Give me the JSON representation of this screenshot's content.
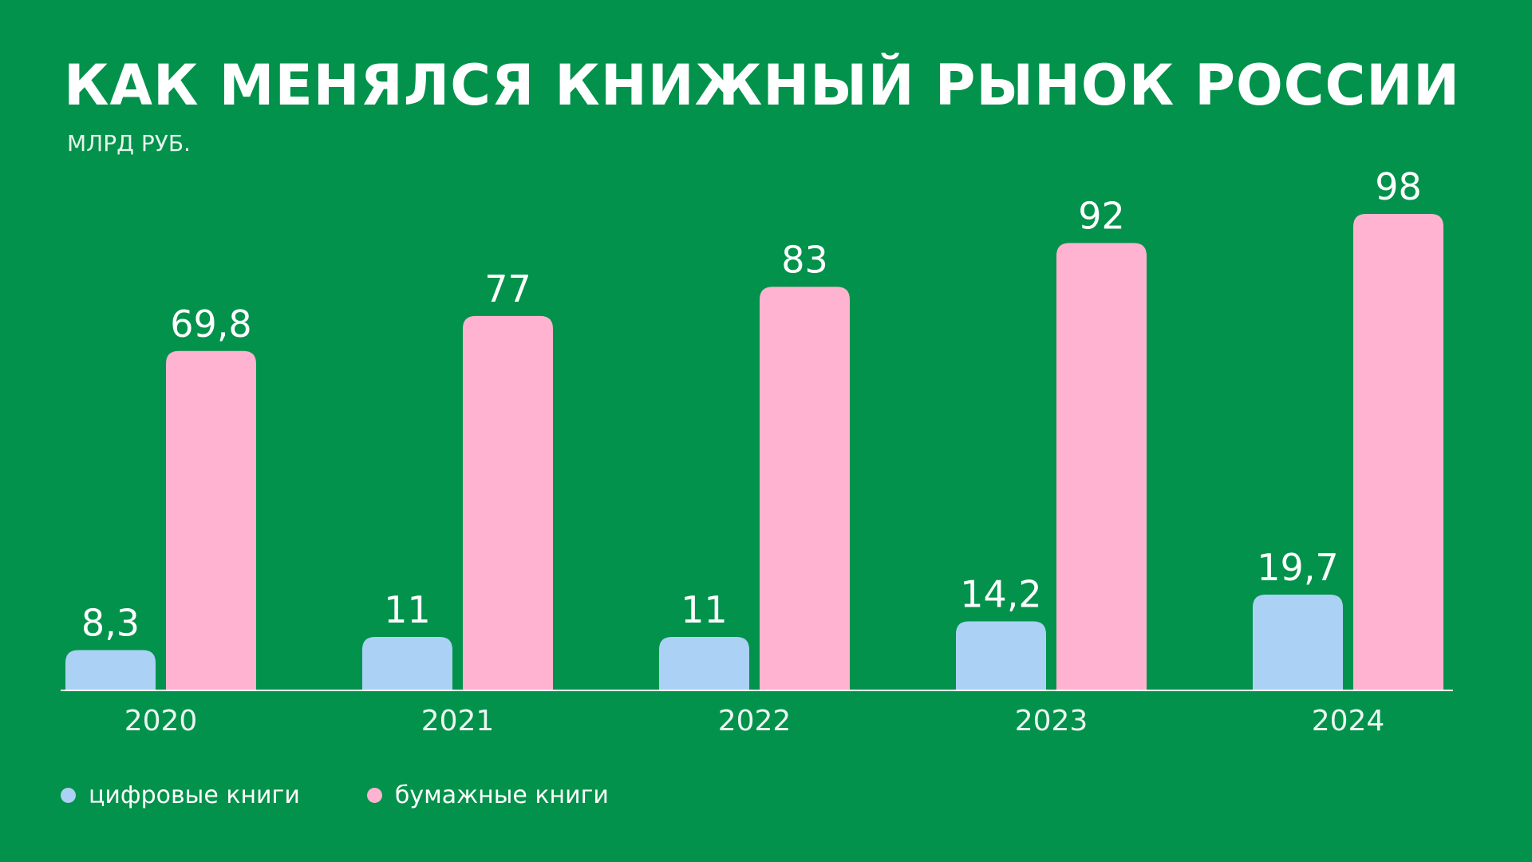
{
  "colors": {
    "background": "#02924B",
    "digital": "#ABD1F4",
    "paper": "#FFB3D1",
    "text": "#FFFFFF",
    "axis": "#FFFFFF"
  },
  "legend": {
    "digital_label": "цифровые книги",
    "paper_label": "бумажные книги"
  },
  "chart_data": {
    "type": "bar",
    "title": "КАК МЕНЯЛСЯ КНИЖНЫЙ РЫНОК РОССИИ",
    "subtitle": "МЛРД РУБ.",
    "categories": [
      "2020",
      "2021",
      "2022",
      "2023",
      "2024"
    ],
    "series": [
      {
        "name": "цифровые книги",
        "values": [
          8.3,
          11,
          11,
          14.2,
          19.7
        ],
        "labels": [
          "8,3",
          "11",
          "11",
          "14,2",
          "19,7"
        ],
        "color": "#ABD1F4"
      },
      {
        "name": "бумажные книги",
        "values": [
          69.8,
          77,
          83,
          92,
          98
        ],
        "labels": [
          "69,8",
          "77",
          "83",
          "92",
          "98"
        ],
        "color": "#FFB3D1"
      }
    ],
    "ylim": [
      0,
      98
    ],
    "grid": false,
    "legend_position": "bottom-left"
  }
}
